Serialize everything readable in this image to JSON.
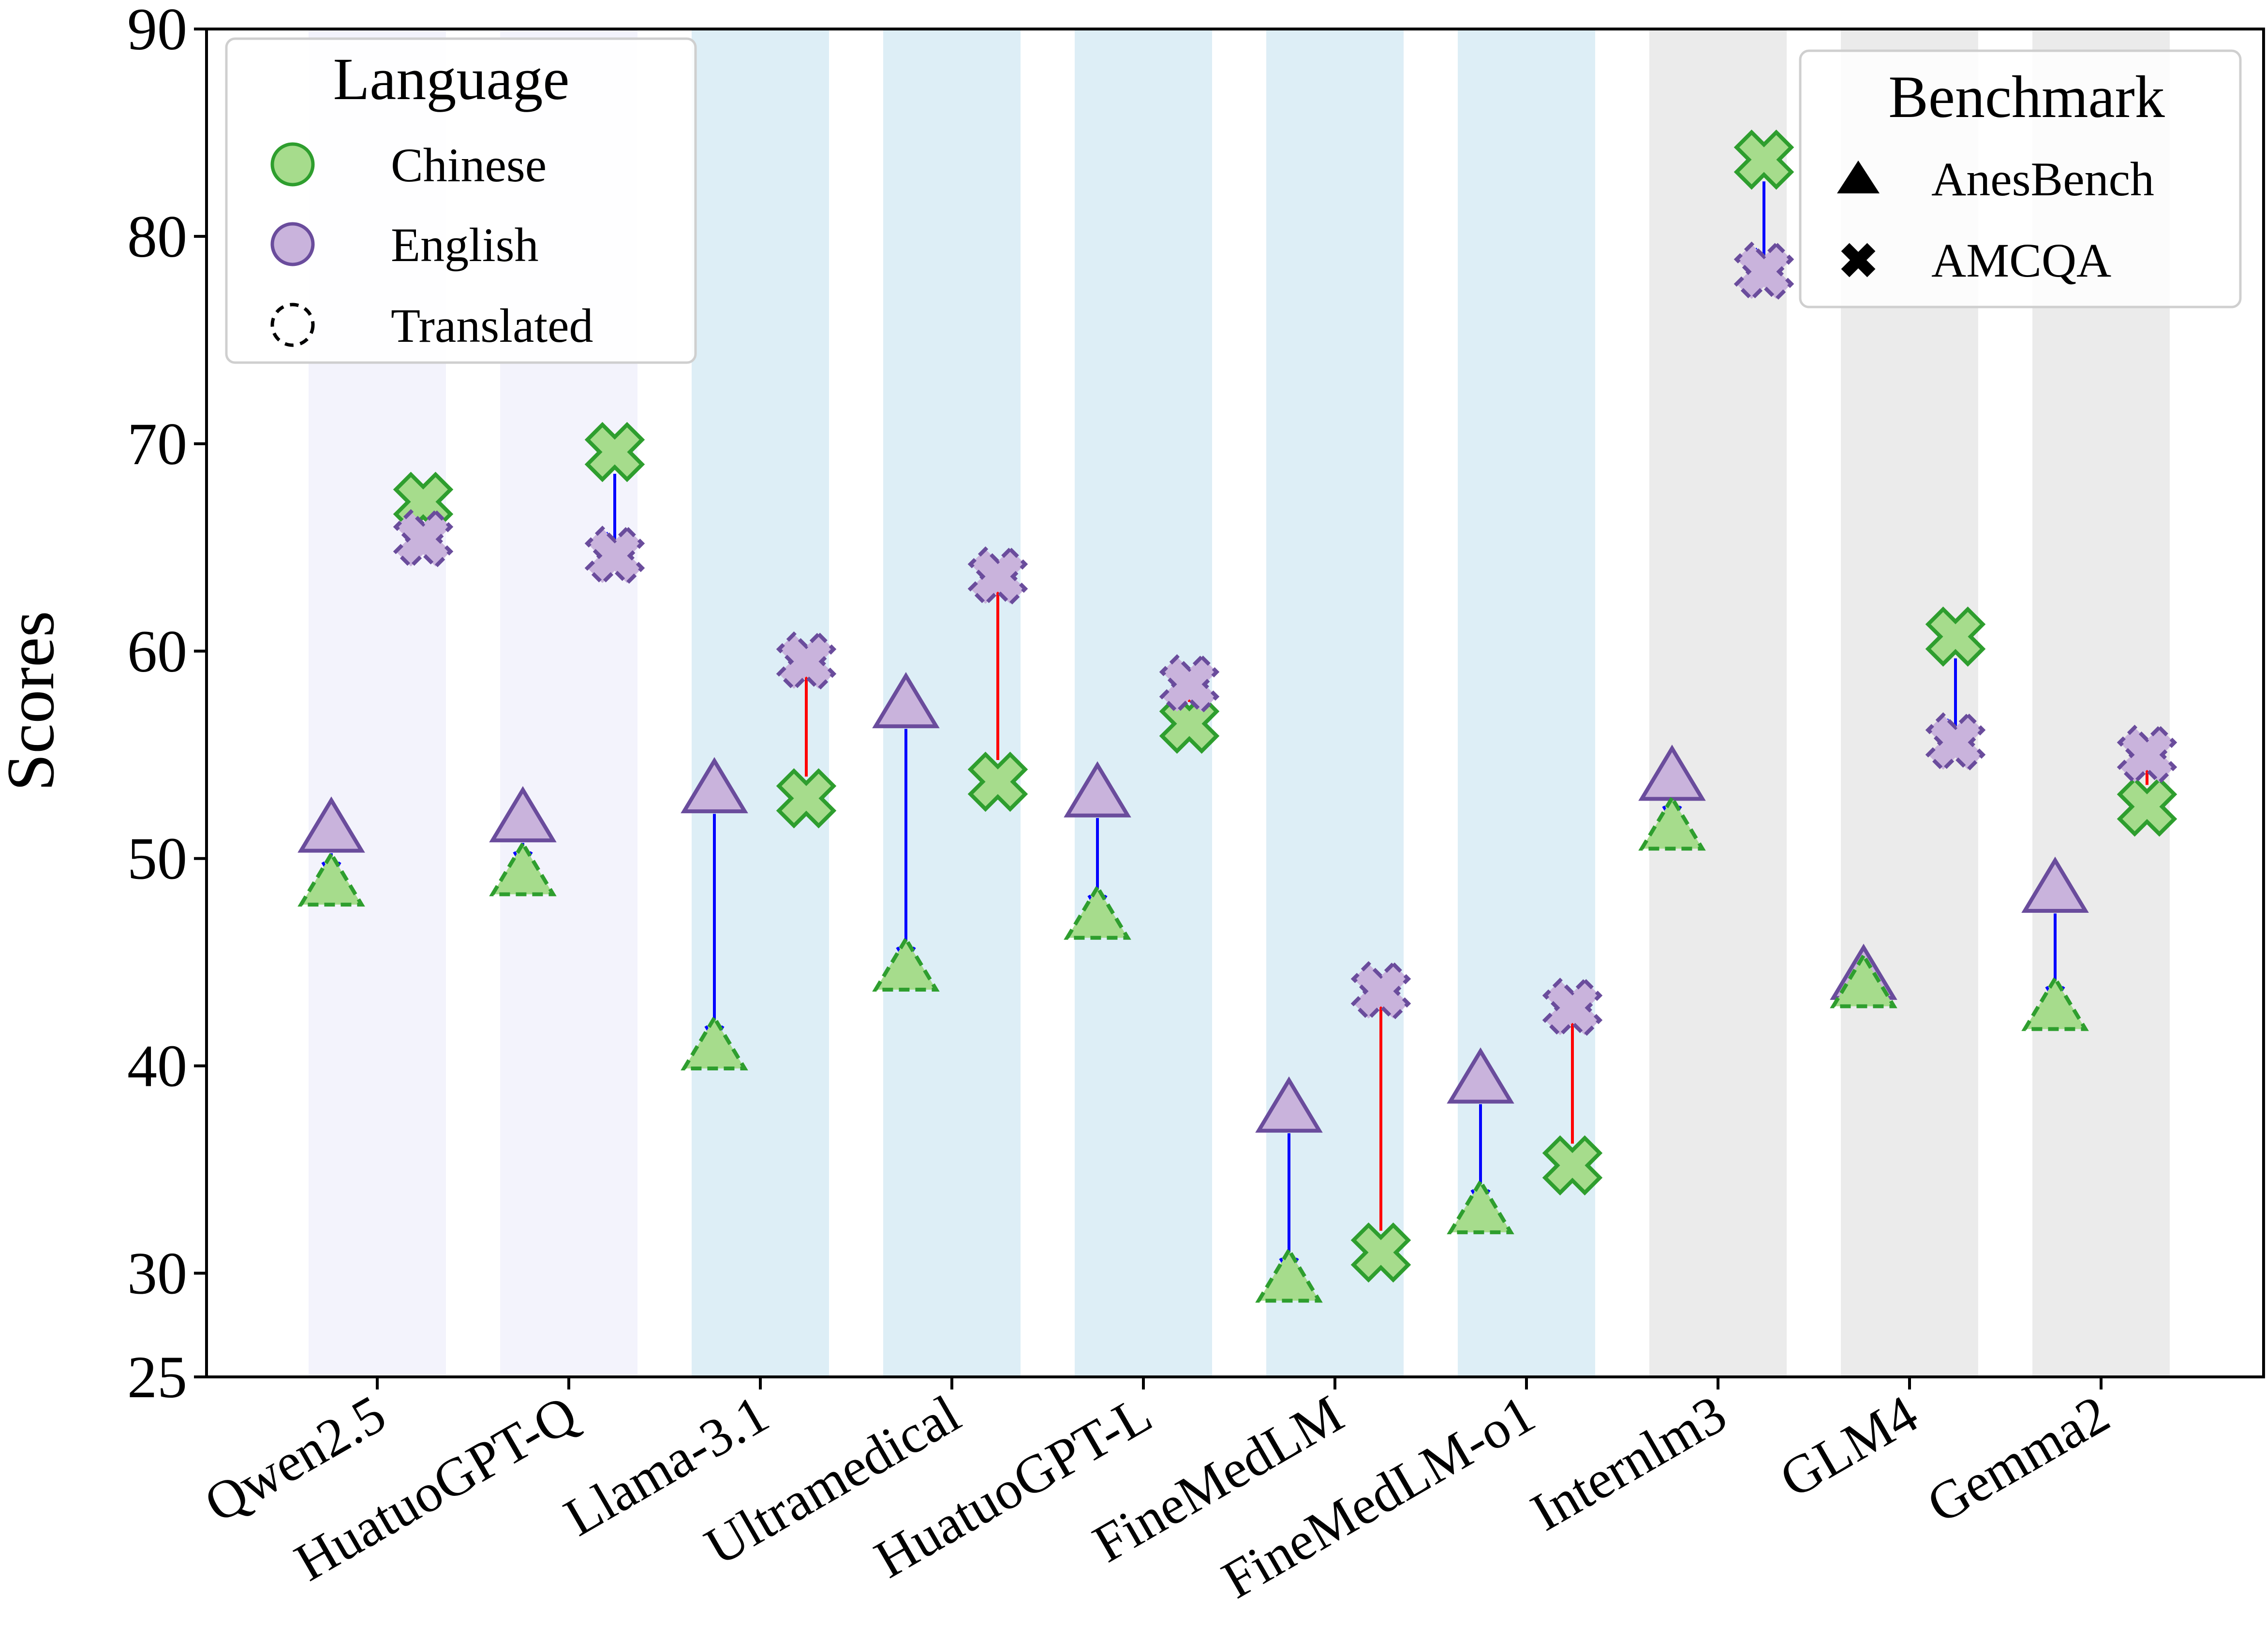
{
  "chart_data": {
    "type": "scatter",
    "ylabel": "Scores",
    "xlabel": "",
    "ylim": [
      25,
      90
    ],
    "yticks": [
      25,
      30,
      40,
      50,
      60,
      70,
      80,
      90
    ],
    "grid": false,
    "categories": [
      "Qwen2.5",
      "HuatuoGPT-Q",
      "Llama-3.1",
      "Ultramedical",
      "HuatuoGPT-L",
      "FineMedLM",
      "FineMedLM-o1",
      "Internlm3",
      "GLM4",
      "Gemma2"
    ],
    "category_groups": [
      "lavender",
      "lavender",
      "lightblue",
      "lightblue",
      "lightblue",
      "lightblue",
      "lightblue",
      "gray",
      "gray",
      "gray"
    ],
    "group_colors": {
      "lavender": "#f3f3fc",
      "lightblue": "#ddeef6",
      "gray": "#ebebeb"
    },
    "series": [
      {
        "benchmark": "AnesBench",
        "language": "English",
        "translated": false,
        "values": [
          51.3,
          51.8,
          53.2,
          57.3,
          53.0,
          37.8,
          39.2,
          53.8,
          44.2,
          48.4
        ]
      },
      {
        "benchmark": "AnesBench",
        "language": "Chinese",
        "translated": true,
        "values": [
          48.7,
          49.2,
          40.8,
          44.6,
          47.1,
          29.6,
          32.9,
          51.4,
          43.8,
          42.7
        ]
      },
      {
        "benchmark": "AMCQA",
        "language": "Chinese",
        "translated": false,
        "values": [
          67.2,
          69.6,
          52.9,
          53.7,
          56.5,
          31.0,
          35.2,
          83.7,
          60.7,
          52.5
        ]
      },
      {
        "benchmark": "AMCQA",
        "language": "English",
        "translated": true,
        "values": [
          65.4,
          64.6,
          59.5,
          63.6,
          58.4,
          43.6,
          42.8,
          78.3,
          55.6,
          55.0
        ]
      }
    ],
    "colors": {
      "chinese_fill": "#a6dc8c",
      "chinese_edge": "#2e9e2e",
      "english_fill": "#c9b3dc",
      "english_edge": "#6a4c9c",
      "arrow_decrease": "#0000ff",
      "arrow_increase": "#ff0000"
    },
    "legend_language": {
      "title": "Language",
      "items": [
        "Chinese",
        "English",
        "Translated"
      ],
      "placement": "top-left"
    },
    "legend_benchmark": {
      "title": "Benchmark",
      "items": [
        "AnesBench",
        "AMCQA"
      ],
      "placement": "top-right"
    }
  }
}
